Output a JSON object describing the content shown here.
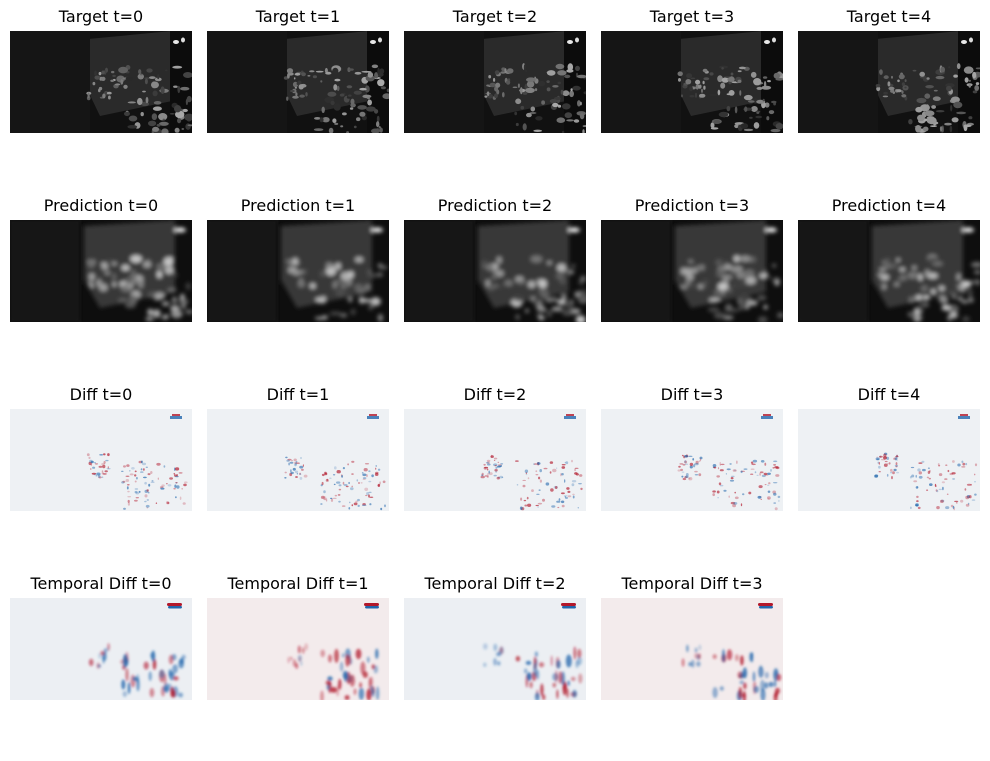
{
  "figure": {
    "rows": [
      {
        "kind": "target",
        "style": "dark",
        "titles": [
          "Target t=0",
          "Target t=1",
          "Target t=2",
          "Target t=3",
          "Target t=4"
        ]
      },
      {
        "kind": "prediction",
        "style": "blur",
        "titles": [
          "Prediction t=0",
          "Prediction t=1",
          "Prediction t=2",
          "Prediction t=3",
          "Prediction t=4"
        ]
      },
      {
        "kind": "diff",
        "style": "diff",
        "titles": [
          "Diff t=0",
          "Diff t=1",
          "Diff t=2",
          "Diff t=3",
          "Diff t=4"
        ]
      },
      {
        "kind": "temporal",
        "style": "temporal",
        "titles": [
          "Temporal Diff t=0",
          "Temporal Diff t=1",
          "Temporal Diff t=2",
          "Temporal Diff t=3"
        ]
      }
    ],
    "colormap_diff": [
      "#2166ac",
      "#f7f7f7",
      "#b2182b"
    ],
    "colormap_grayscale": [
      "#000000",
      "#ffffff"
    ]
  }
}
